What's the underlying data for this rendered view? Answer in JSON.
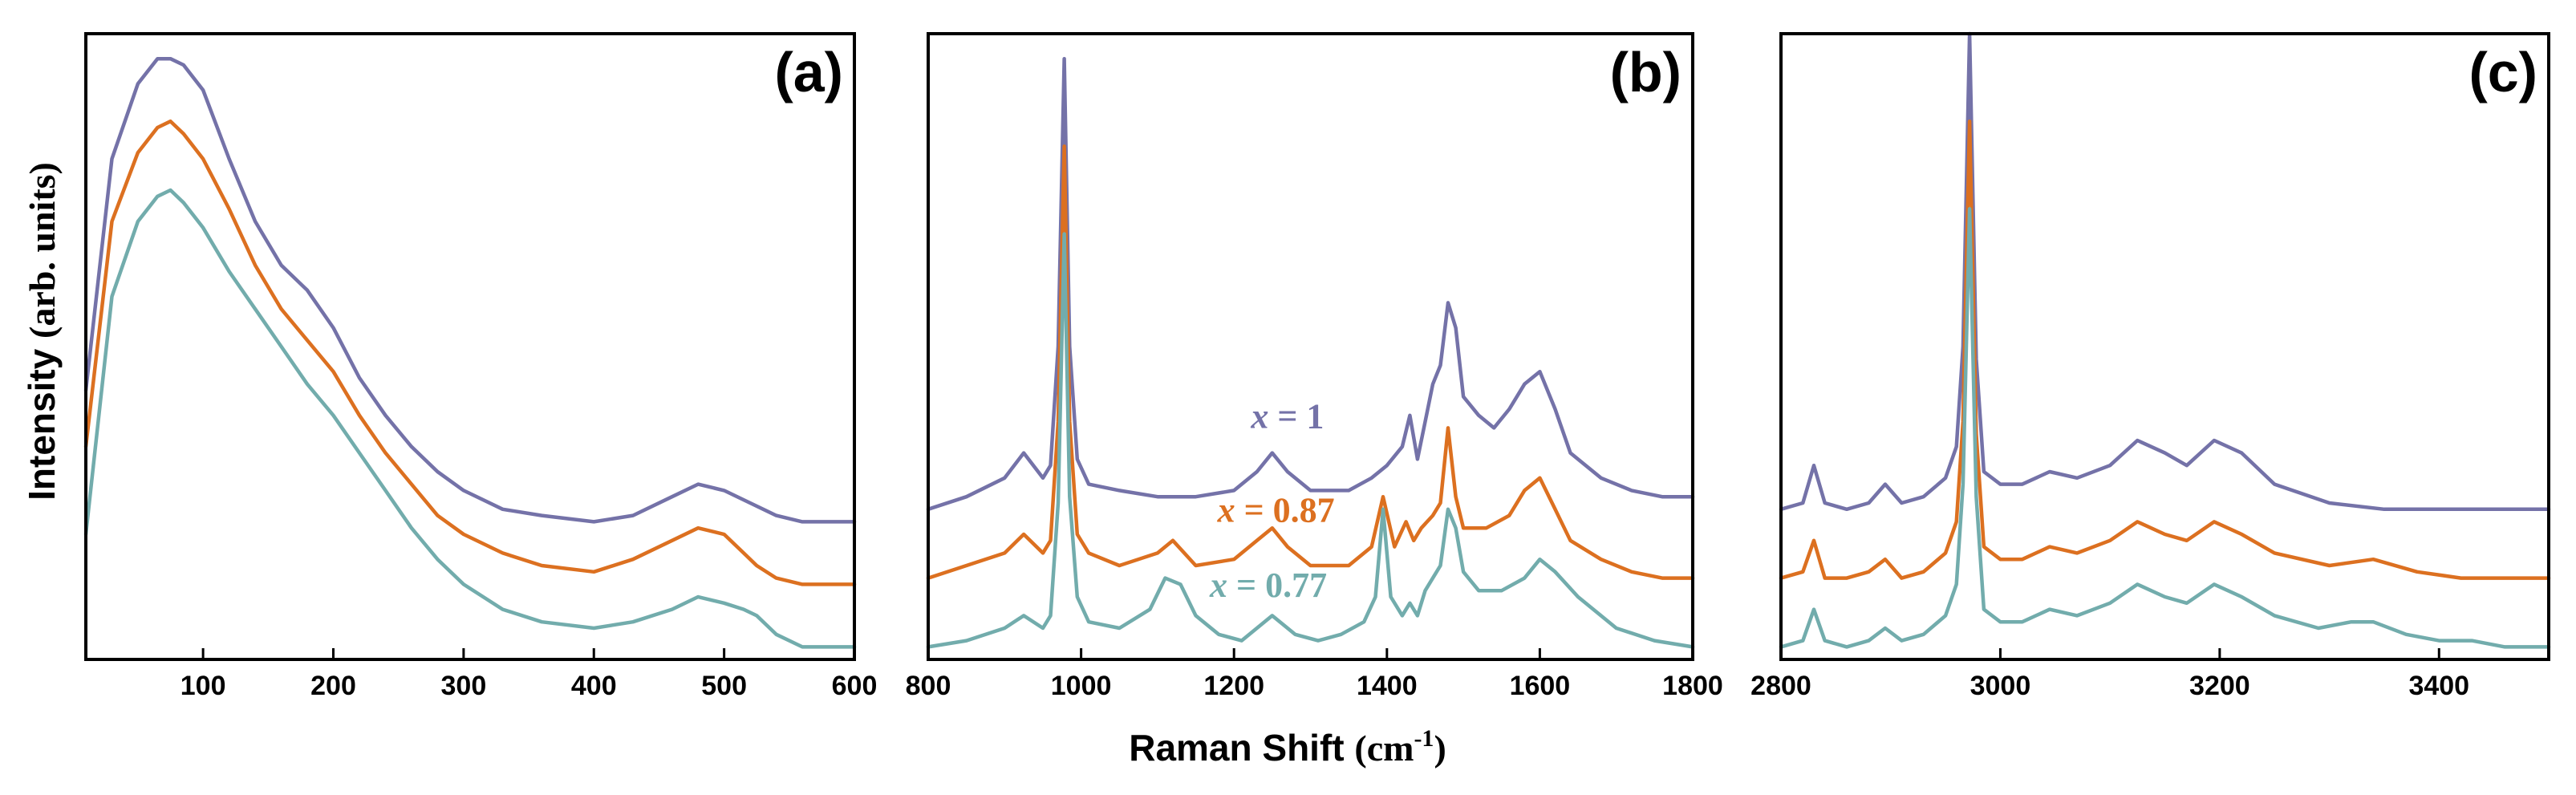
{
  "colors": {
    "x1": "#7472a8",
    "x087": "#dc7020",
    "x077": "#72acac"
  },
  "ylabel": {
    "main": "Intensity",
    "unit": "(arb. units)"
  },
  "xlabel": {
    "main": "Raman Shift",
    "unit": "(cm",
    "exp": "-1",
    "close": ")"
  },
  "chart_data": [
    {
      "type": "line",
      "panel": "(a)",
      "xlim": [
        10,
        600
      ],
      "xticks": [
        100,
        200,
        300,
        400,
        500,
        600
      ],
      "ylim": [
        0,
        100
      ],
      "series": [
        {
          "name": "x = 1",
          "color_key": "x1",
          "x": [
            10,
            30,
            50,
            65,
            75,
            85,
            100,
            120,
            140,
            160,
            180,
            200,
            220,
            240,
            260,
            280,
            300,
            330,
            360,
            400,
            430,
            460,
            480,
            500,
            520,
            540,
            560,
            600
          ],
          "y": [
            43,
            80,
            92,
            96,
            96,
            95,
            91,
            80,
            70,
            63,
            59,
            53,
            45,
            39,
            34,
            30,
            27,
            24,
            23,
            22,
            23,
            26,
            28,
            27,
            25,
            23,
            22,
            22
          ]
        },
        {
          "name": "x = 0.87",
          "color_key": "x087",
          "x": [
            10,
            30,
            50,
            65,
            75,
            85,
            100,
            120,
            140,
            160,
            180,
            200,
            220,
            240,
            260,
            280,
            300,
            330,
            360,
            400,
            430,
            460,
            480,
            500,
            515,
            525,
            540,
            560,
            600
          ],
          "y": [
            34,
            70,
            81,
            85,
            86,
            84,
            80,
            72,
            63,
            56,
            51,
            46,
            39,
            33,
            28,
            23,
            20,
            17,
            15,
            14,
            16,
            19,
            21,
            20,
            17,
            15,
            13,
            12,
            12
          ]
        },
        {
          "name": "x = 0.77",
          "color_key": "x077",
          "x": [
            10,
            30,
            50,
            65,
            75,
            85,
            100,
            120,
            140,
            160,
            180,
            200,
            220,
            240,
            260,
            280,
            300,
            330,
            360,
            400,
            430,
            460,
            480,
            500,
            515,
            525,
            540,
            560,
            600
          ],
          "y": [
            20,
            58,
            70,
            74,
            75,
            73,
            69,
            62,
            56,
            50,
            44,
            39,
            33,
            27,
            21,
            16,
            12,
            8,
            6,
            5,
            6,
            8,
            10,
            9,
            8,
            7,
            4,
            2,
            2
          ]
        }
      ]
    },
    {
      "type": "line",
      "panel": "(b)",
      "xlim": [
        800,
        1800
      ],
      "xticks": [
        800,
        1000,
        1200,
        1400,
        1600,
        1800
      ],
      "ylim": [
        0,
        100
      ],
      "series": [
        {
          "name": "x = 1",
          "label": {
            "var": "x",
            "rest": " = 1"
          },
          "label_at": [
            1270,
            37
          ],
          "color_key": "x1",
          "x": [
            800,
            850,
            900,
            925,
            950,
            960,
            970,
            978,
            985,
            995,
            1010,
            1050,
            1100,
            1150,
            1200,
            1230,
            1250,
            1270,
            1300,
            1350,
            1380,
            1400,
            1420,
            1430,
            1440,
            1450,
            1460,
            1470,
            1480,
            1490,
            1500,
            1520,
            1540,
            1560,
            1580,
            1600,
            1620,
            1640,
            1680,
            1720,
            1760,
            1800
          ],
          "y": [
            24,
            26,
            29,
            33,
            29,
            31,
            50,
            96,
            50,
            32,
            28,
            27,
            26,
            26,
            27,
            30,
            33,
            30,
            27,
            27,
            29,
            31,
            34,
            39,
            32,
            38,
            44,
            47,
            57,
            53,
            42,
            39,
            37,
            40,
            44,
            46,
            40,
            33,
            29,
            27,
            26,
            26
          ]
        },
        {
          "name": "x = 0.87",
          "label": {
            "var": "x",
            "rest": " = 0.87"
          },
          "label_at": [
            1255,
            22
          ],
          "color_key": "x087",
          "x": [
            800,
            850,
            900,
            925,
            950,
            960,
            970,
            978,
            985,
            995,
            1010,
            1050,
            1100,
            1120,
            1150,
            1200,
            1230,
            1250,
            1270,
            1300,
            1350,
            1380,
            1395,
            1410,
            1425,
            1435,
            1445,
            1460,
            1470,
            1480,
            1490,
            1500,
            1530,
            1560,
            1580,
            1600,
            1620,
            1640,
            1680,
            1720,
            1760,
            1800
          ],
          "y": [
            13,
            15,
            17,
            20,
            17,
            19,
            38,
            82,
            38,
            20,
            17,
            15,
            17,
            19,
            15,
            16,
            19,
            21,
            18,
            15,
            15,
            18,
            26,
            18,
            22,
            19,
            21,
            23,
            25,
            37,
            26,
            21,
            21,
            23,
            27,
            29,
            24,
            19,
            16,
            14,
            13,
            13
          ]
        },
        {
          "name": "x = 0.77",
          "label": {
            "var": "x",
            "rest": " = 0.77"
          },
          "label_at": [
            1245,
            10
          ],
          "color_key": "x077",
          "x": [
            800,
            850,
            900,
            925,
            950,
            960,
            970,
            978,
            985,
            995,
            1010,
            1050,
            1090,
            1110,
            1130,
            1150,
            1180,
            1210,
            1250,
            1280,
            1310,
            1340,
            1370,
            1385,
            1395,
            1405,
            1420,
            1430,
            1440,
            1450,
            1460,
            1470,
            1480,
            1490,
            1500,
            1520,
            1550,
            1580,
            1600,
            1620,
            1650,
            1700,
            1750,
            1800
          ],
          "y": [
            2,
            3,
            5,
            7,
            5,
            7,
            25,
            68,
            26,
            10,
            6,
            5,
            8,
            13,
            12,
            7,
            4,
            3,
            7,
            4,
            3,
            4,
            6,
            10,
            24,
            10,
            7,
            9,
            7,
            11,
            13,
            15,
            24,
            21,
            14,
            11,
            11,
            13,
            16,
            14,
            10,
            5,
            3,
            2
          ]
        }
      ]
    },
    {
      "type": "line",
      "panel": "(c)",
      "xlim": [
        2800,
        3500
      ],
      "xticks": [
        2800,
        3000,
        3200,
        3400
      ],
      "ylim": [
        0,
        100
      ],
      "series": [
        {
          "name": "x = 1",
          "color_key": "x1",
          "x": [
            2800,
            2820,
            2830,
            2840,
            2860,
            2880,
            2895,
            2910,
            2930,
            2950,
            2960,
            2966,
            2972,
            2978,
            2985,
            3000,
            3020,
            3045,
            3070,
            3100,
            3125,
            3150,
            3170,
            3195,
            3220,
            3250,
            3300,
            3350,
            3400,
            3450,
            3500
          ],
          "y": [
            24,
            25,
            31,
            25,
            24,
            25,
            28,
            25,
            26,
            29,
            34,
            50,
            100,
            48,
            30,
            28,
            28,
            30,
            29,
            31,
            35,
            33,
            31,
            35,
            33,
            28,
            25,
            24,
            24,
            24,
            24
          ]
        },
        {
          "name": "x = 0.87",
          "color_key": "x087",
          "x": [
            2800,
            2820,
            2830,
            2840,
            2860,
            2880,
            2895,
            2910,
            2930,
            2950,
            2960,
            2966,
            2972,
            2978,
            2985,
            3000,
            3020,
            3045,
            3070,
            3100,
            3125,
            3150,
            3170,
            3195,
            3220,
            3250,
            3300,
            3340,
            3380,
            3420,
            3460,
            3500
          ],
          "y": [
            13,
            14,
            19,
            13,
            13,
            14,
            16,
            13,
            14,
            17,
            22,
            38,
            86,
            36,
            18,
            16,
            16,
            18,
            17,
            19,
            22,
            20,
            19,
            22,
            20,
            17,
            15,
            16,
            14,
            13,
            13,
            13
          ]
        },
        {
          "name": "x = 0.77",
          "color_key": "x077",
          "x": [
            2800,
            2820,
            2830,
            2840,
            2860,
            2880,
            2895,
            2910,
            2930,
            2950,
            2960,
            2966,
            2972,
            2978,
            2985,
            3000,
            3020,
            3045,
            3070,
            3100,
            3125,
            3150,
            3170,
            3195,
            3220,
            3250,
            3290,
            3320,
            3340,
            3370,
            3400,
            3430,
            3460,
            3500
          ],
          "y": [
            2,
            3,
            8,
            3,
            2,
            3,
            5,
            3,
            4,
            7,
            12,
            28,
            72,
            26,
            8,
            6,
            6,
            8,
            7,
            9,
            12,
            10,
            9,
            12,
            10,
            7,
            5,
            6,
            6,
            4,
            3,
            3,
            2,
            2
          ]
        }
      ]
    }
  ]
}
